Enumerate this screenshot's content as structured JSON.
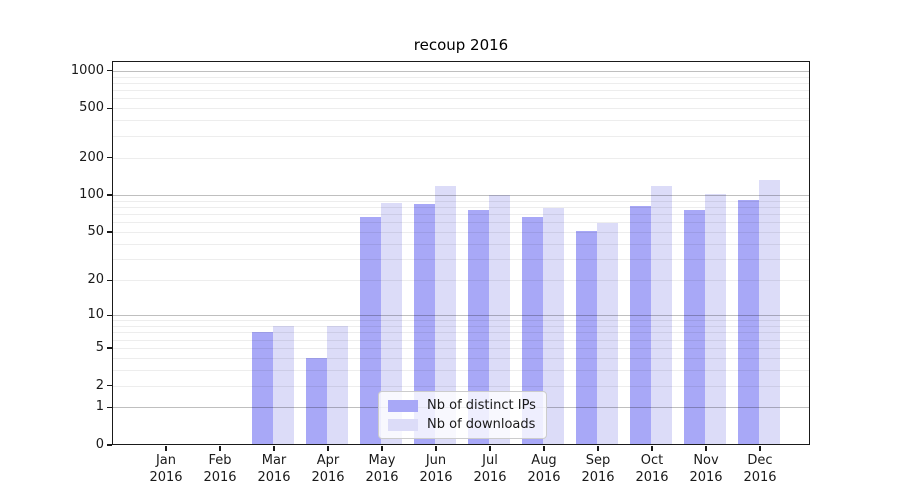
{
  "title": "recoup 2016",
  "chart_data": {
    "type": "bar",
    "title": "recoup 2016",
    "categories": [
      "Jan 2016",
      "Feb 2016",
      "Mar 2016",
      "Apr 2016",
      "May 2016",
      "Jun 2016",
      "Jul 2016",
      "Aug 2016",
      "Sep 2016",
      "Oct 2016",
      "Nov 2016",
      "Dec 2016"
    ],
    "series": [
      {
        "name": "Nb of distinct IPs",
        "color": "#a8a8f7",
        "values": [
          0,
          0,
          7,
          4,
          66,
          85,
          75,
          66,
          51,
          82,
          75,
          92
        ]
      },
      {
        "name": "Nb of downloads",
        "color": "#dcdcf8",
        "values": [
          0,
          0,
          8,
          8,
          87,
          118,
          101,
          79,
          59,
          119,
          102,
          132
        ]
      }
    ],
    "xlabel": "",
    "ylabel": "",
    "yscale": "log1p",
    "yticks": [
      0,
      1,
      2,
      5,
      10,
      20,
      50,
      100,
      200,
      500,
      1000
    ],
    "ylim": [
      0,
      1180
    ],
    "grid": true,
    "legend_position": "lower center inside"
  },
  "colors": {
    "background": "#ffffff",
    "bar_dark": "#a8a8f7",
    "bar_light": "#dcdcf8",
    "major_grid": "rgba(0,0,0,0.25)",
    "minor_grid": "rgba(0,0,0,0.07)",
    "spine": "#1a1a1a",
    "text": "#1a1a1a",
    "legend_bg": "rgba(255,255,255,0.8)",
    "legend_border": "#cccccc"
  }
}
